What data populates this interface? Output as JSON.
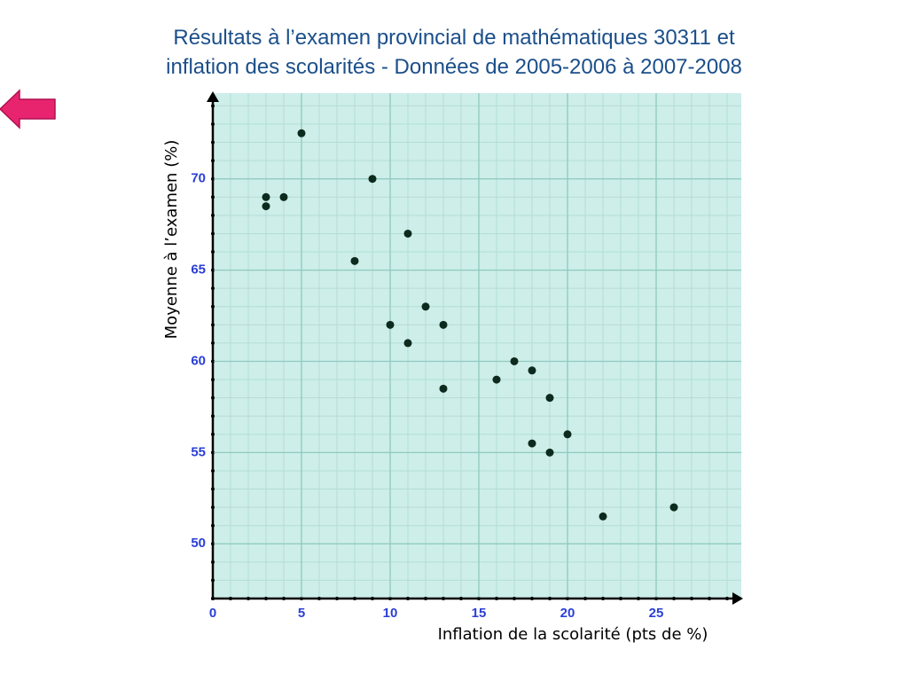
{
  "chart_data": {
    "type": "scatter",
    "title": [
      "Résultats à l’examen provincial de mathématiques 30311 et",
      "inflation des scolarités - Données de 2005-2006 à 2007-2008"
    ],
    "xlabel": "Inflation de la scolarité (pts de %)",
    "ylabel": "Moyenne à l’examen (%)",
    "series": [
      {
        "name": "",
        "color": "#0d2a1e",
        "x": [
          3,
          3,
          4,
          5,
          9,
          8,
          11,
          10,
          12,
          13,
          11,
          13,
          16,
          17,
          18,
          19,
          18,
          20,
          19,
          22,
          26
        ],
        "values": [
          69,
          68.5,
          69,
          72.5,
          70,
          65.5,
          67,
          62,
          63,
          62,
          61,
          58.5,
          59,
          60,
          59.5,
          58,
          55.5,
          56,
          55,
          51.5,
          52
        ]
      }
    ],
    "xlim": [
      0,
      29.8
    ],
    "ylim": [
      47,
      74.7
    ],
    "xticks": [
      0,
      5,
      10,
      15,
      20,
      25
    ],
    "yticks": [
      50,
      55,
      60,
      65,
      70
    ],
    "grid": true
  }
}
